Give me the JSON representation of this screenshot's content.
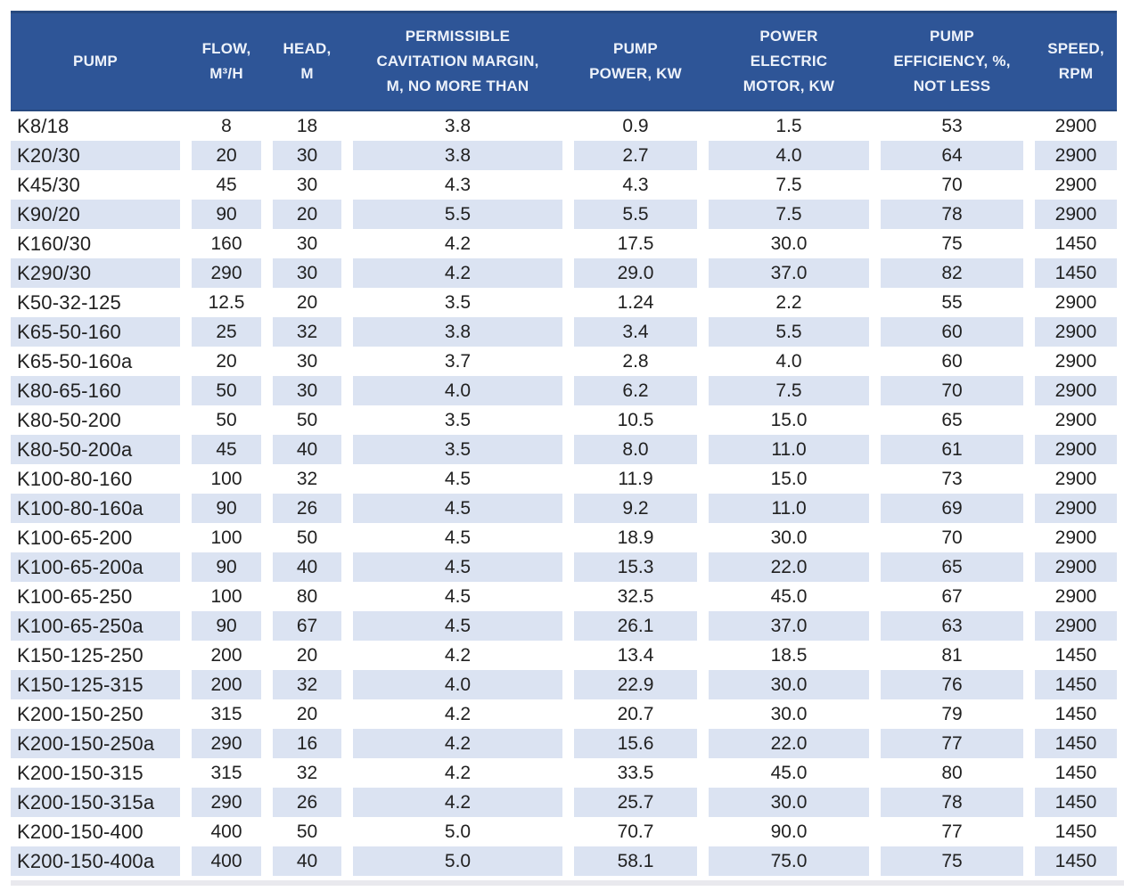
{
  "table": {
    "colors": {
      "header_bg": "#2e5597",
      "header_text": "#edf2fa",
      "row_bg": "#ffffff",
      "row_alt_bg": "#dbe3f2",
      "cell_text": "#212121"
    },
    "columns": [
      {
        "key": "pump",
        "label": "PUMP"
      },
      {
        "key": "flow",
        "label": "FLOW,\nM³/H"
      },
      {
        "key": "head",
        "label": "HEAD,\nM"
      },
      {
        "key": "cavitation_margin",
        "label": "PERMISSIBLE\nCAVITATION MARGIN,\nM, NO MORE THAN"
      },
      {
        "key": "pump_power",
        "label": "PUMP\nPOWER, KW"
      },
      {
        "key": "motor_power",
        "label": "POWER\nELECTRIC\nMOTOR, KW"
      },
      {
        "key": "efficiency",
        "label": "PUMP\nEFFICIENCY, %,\nNOT LESS"
      },
      {
        "key": "speed",
        "label": "SPEED,\nRPM"
      }
    ],
    "rows": [
      [
        "K8/18",
        "8",
        "18",
        "3.8",
        "0.9",
        "1.5",
        "53",
        "2900"
      ],
      [
        "K20/30",
        "20",
        "30",
        "3.8",
        "2.7",
        "4.0",
        "64",
        "2900"
      ],
      [
        "K45/30",
        "45",
        "30",
        "4.3",
        "4.3",
        "7.5",
        "70",
        "2900"
      ],
      [
        "K90/20",
        "90",
        "20",
        "5.5",
        "5.5",
        "7.5",
        "78",
        "2900"
      ],
      [
        "K160/30",
        "160",
        "30",
        "4.2",
        "17.5",
        "30.0",
        "75",
        "1450"
      ],
      [
        "K290/30",
        "290",
        "30",
        "4.2",
        "29.0",
        "37.0",
        "82",
        "1450"
      ],
      [
        "K50-32-125",
        "12.5",
        "20",
        "3.5",
        "1.24",
        "2.2",
        "55",
        "2900"
      ],
      [
        "K65-50-160",
        "25",
        "32",
        "3.8",
        "3.4",
        "5.5",
        "60",
        "2900"
      ],
      [
        "K65-50-160a",
        "20",
        "30",
        "3.7",
        "2.8",
        "4.0",
        "60",
        "2900"
      ],
      [
        "K80-65-160",
        "50",
        "30",
        "4.0",
        "6.2",
        "7.5",
        "70",
        "2900"
      ],
      [
        "K80-50-200",
        "50",
        "50",
        "3.5",
        "10.5",
        "15.0",
        "65",
        "2900"
      ],
      [
        "K80-50-200a",
        "45",
        "40",
        "3.5",
        "8.0",
        "11.0",
        "61",
        "2900"
      ],
      [
        "K100-80-160",
        "100",
        "32",
        "4.5",
        "11.9",
        "15.0",
        "73",
        "2900"
      ],
      [
        "K100-80-160a",
        "90",
        "26",
        "4.5",
        "9.2",
        "11.0",
        "69",
        "2900"
      ],
      [
        "K100-65-200",
        "100",
        "50",
        "4.5",
        "18.9",
        "30.0",
        "70",
        "2900"
      ],
      [
        "K100-65-200a",
        "90",
        "40",
        "4.5",
        "15.3",
        "22.0",
        "65",
        "2900"
      ],
      [
        "K100-65-250",
        "100",
        "80",
        "4.5",
        "32.5",
        "45.0",
        "67",
        "2900"
      ],
      [
        "K100-65-250a",
        "90",
        "67",
        "4.5",
        "26.1",
        "37.0",
        "63",
        "2900"
      ],
      [
        "K150-125-250",
        "200",
        "20",
        "4.2",
        "13.4",
        "18.5",
        "81",
        "1450"
      ],
      [
        "K150-125-315",
        "200",
        "32",
        "4.0",
        "22.9",
        "30.0",
        "76",
        "1450"
      ],
      [
        "K200-150-250",
        "315",
        "20",
        "4.2",
        "20.7",
        "30.0",
        "79",
        "1450"
      ],
      [
        "K200-150-250a",
        "290",
        "16",
        "4.2",
        "15.6",
        "22.0",
        "77",
        "1450"
      ],
      [
        "K200-150-315",
        "315",
        "32",
        "4.2",
        "33.5",
        "45.0",
        "80",
        "1450"
      ],
      [
        "K200-150-315a",
        "290",
        "26",
        "4.2",
        "25.7",
        "30.0",
        "78",
        "1450"
      ],
      [
        "K200-150-400",
        "400",
        "50",
        "5.0",
        "70.7",
        "90.0",
        "77",
        "1450"
      ],
      [
        "K200-150-400a",
        "400",
        "40",
        "5.0",
        "58.1",
        "75.0",
        "75",
        "1450"
      ]
    ]
  }
}
